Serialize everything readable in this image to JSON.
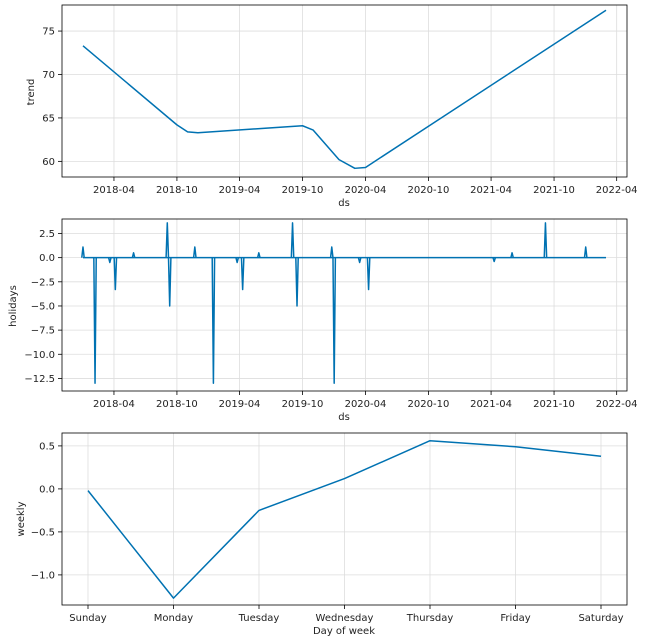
{
  "chart_data": [
    {
      "type": "line",
      "xlabel": "ds",
      "ylabel": "trend",
      "x_type": "date",
      "xlim": [
        "2017-11-01",
        "2022-05-01"
      ],
      "ylim": [
        58.2,
        78.0
      ],
      "x_ticks": [
        "2018-04-01",
        "2018-10-01",
        "2019-04-01",
        "2019-10-01",
        "2020-04-01",
        "2020-10-01",
        "2021-04-01",
        "2021-10-01",
        "2022-04-01"
      ],
      "x_tick_labels": [
        "2018-04",
        "2018-10",
        "2019-04",
        "2019-10",
        "2020-04",
        "2020-10",
        "2021-04",
        "2021-10",
        "2022-04"
      ],
      "y_ticks": [
        60,
        65,
        70,
        75
      ],
      "y_tick_labels": [
        "60",
        "65",
        "70",
        "75"
      ],
      "grid": true,
      "series": [
        {
          "x": [
            "2018-01-01",
            "2018-10-01",
            "2018-11-01",
            "2018-12-01",
            "2019-10-01",
            "2019-11-01",
            "2020-01-15",
            "2020-03-01",
            "2020-04-01",
            "2022-03-01"
          ],
          "y": [
            73.3,
            64.2,
            63.4,
            63.3,
            64.1,
            63.6,
            60.2,
            59.2,
            59.3,
            77.4
          ]
        }
      ]
    },
    {
      "type": "line",
      "xlabel": "ds",
      "ylabel": "holidays",
      "x_type": "date",
      "xlim": [
        "2017-11-01",
        "2022-05-01"
      ],
      "ylim": [
        -13.8,
        4.0
      ],
      "x_ticks": [
        "2018-04-01",
        "2018-10-01",
        "2019-04-01",
        "2019-10-01",
        "2020-04-01",
        "2020-10-01",
        "2021-04-01",
        "2021-10-01",
        "2022-04-01"
      ],
      "x_tick_labels": [
        "2018-04",
        "2018-10",
        "2019-04",
        "2019-10",
        "2020-04",
        "2020-10",
        "2021-04",
        "2021-10",
        "2022-04"
      ],
      "y_ticks": [
        -12.5,
        -10.0,
        -7.5,
        -5.0,
        -2.5,
        0.0,
        2.5
      ],
      "y_tick_labels": [
        "−12.5",
        "−10.0",
        "−7.5",
        "−5.0",
        "−2.5",
        "0.0",
        "2.5"
      ],
      "grid": true,
      "baseline": 0,
      "spikes": [
        {
          "x": "2018-01-01",
          "y": 1.1
        },
        {
          "x": "2018-02-05",
          "y": -13.0
        },
        {
          "x": "2018-03-20",
          "y": -0.5
        },
        {
          "x": "2018-04-05",
          "y": -3.3
        },
        {
          "x": "2018-05-28",
          "y": 0.5
        },
        {
          "x": "2018-09-03",
          "y": 3.6
        },
        {
          "x": "2018-09-10",
          "y": -5.0
        },
        {
          "x": "2018-11-22",
          "y": 1.1
        },
        {
          "x": "2019-01-15",
          "y": -13.0
        },
        {
          "x": "2019-03-25",
          "y": -0.5
        },
        {
          "x": "2019-04-10",
          "y": -3.3
        },
        {
          "x": "2019-05-27",
          "y": 0.5
        },
        {
          "x": "2019-09-02",
          "y": 3.6
        },
        {
          "x": "2019-09-15",
          "y": -5.0
        },
        {
          "x": "2019-12-25",
          "y": 1.1
        },
        {
          "x": "2020-01-01",
          "y": -13.0
        },
        {
          "x": "2020-03-15",
          "y": -0.5
        },
        {
          "x": "2020-04-10",
          "y": -3.3
        },
        {
          "x": "2021-04-10",
          "y": -0.4
        },
        {
          "x": "2021-06-01",
          "y": 0.5
        },
        {
          "x": "2021-09-06",
          "y": 3.6
        },
        {
          "x": "2022-01-01",
          "y": 1.1
        }
      ],
      "x_end": "2022-03-01"
    },
    {
      "type": "line",
      "xlabel": "Day of week",
      "ylabel": "weekly",
      "categories": [
        "Sunday",
        "Monday",
        "Tuesday",
        "Wednesday",
        "Thursday",
        "Friday",
        "Saturday"
      ],
      "ylim": [
        -1.35,
        0.65
      ],
      "y_ticks": [
        -1.0,
        -0.5,
        0.0,
        0.5
      ],
      "y_tick_labels": [
        "−1.0",
        "−0.5",
        "0.0",
        "0.5"
      ],
      "grid": true,
      "series": [
        {
          "values": [
            -0.02,
            -1.27,
            -0.25,
            0.12,
            0.56,
            0.49,
            0.38
          ]
        }
      ]
    }
  ],
  "colors": {
    "series": "#0072B2",
    "grid": "#dddddd"
  }
}
